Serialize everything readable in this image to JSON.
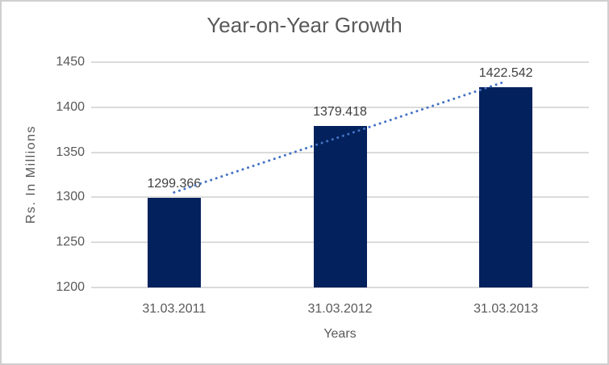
{
  "chart_data": {
    "type": "bar",
    "title": "Year-on-Year Growth",
    "categories": [
      "31.03.2011",
      "31.03.2012",
      "31.03.2013"
    ],
    "values": [
      1299.366,
      1379.418,
      1422.542
    ],
    "data_labels": [
      "1299.366",
      "1379.418",
      "1422.542"
    ],
    "xlabel": "Years",
    "ylabel": "Rs. In Millions",
    "ylim": [
      1200,
      1450
    ],
    "yticks": [
      1200,
      1250,
      1300,
      1350,
      1400,
      1450
    ],
    "grid": true,
    "legend": "none",
    "trendline": {
      "type": "linear",
      "style": "dotted"
    },
    "colors": {
      "bar": "#03215c",
      "trendline": "#4472c4",
      "gridline": "#dbdbdb",
      "axis_text": "#595959",
      "data_label": "#404040",
      "title_text": "#595959",
      "border": "#d0cece",
      "background": "#ffffff"
    }
  }
}
